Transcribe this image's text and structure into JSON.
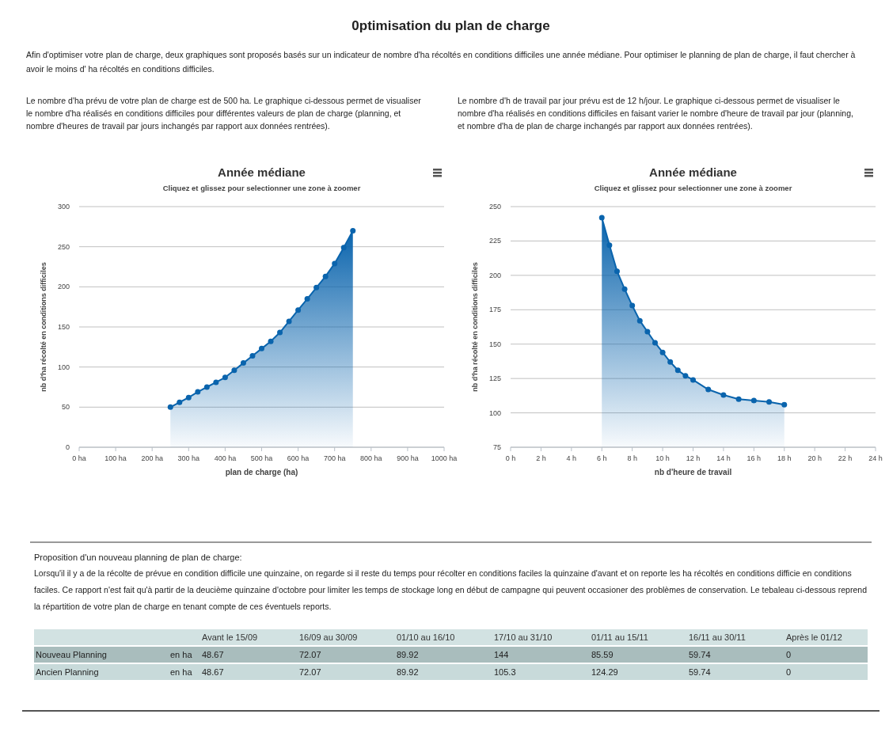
{
  "chart_data": [
    {
      "type": "other",
      "title": "0ptimisation du plan de charge",
      "annotations": [
        "Afin d'optimiser votre plan de charge, deux graphiques sont proposés basés sur un indicateur de nombre d'ha récoltés en conditions difficiles une année médiane. Pour optimiser le planning de plan de charge, il faut chercher à avoir le moins d' ha récoltés en conditions difficiles."
      ]
    },
    {
      "type": "area",
      "title": "Année médiane",
      "subtitle": "Cliquez et glissez pour selectionner une zone à zoomer",
      "xlabel": "plan de charge (ha)",
      "ylabel": "nb d'ha récolté en conditions difficiles",
      "annotations": [
        "Le nombre d'ha prévu de votre plan de charge est de 500 ha. Le graphique ci-dessous permet de visualiser le nombre d'ha réalisés en conditions difficiles pour différentes valeurs de plan de charge (planning, et nombre d'heures de travail par jours inchangés par rapport aux données rentrées)."
      ],
      "x": [
        250,
        275,
        300,
        325,
        350,
        375,
        400,
        425,
        450,
        475,
        500,
        525,
        550,
        575,
        600,
        625,
        650,
        675,
        700,
        725,
        750
      ],
      "series": [
        {
          "color": "#0a64ad",
          "values": [
            50,
            56,
            62,
            69,
            75,
            81,
            87,
            96,
            105,
            114,
            123,
            132,
            143,
            157,
            171,
            185,
            199,
            213,
            229,
            249,
            270
          ]
        }
      ],
      "xlim": [
        0,
        1000
      ],
      "xticks": [
        {
          "value": 0,
          "label": "0 ha"
        },
        {
          "value": 100,
          "label": "100 ha"
        },
        {
          "value": 200,
          "label": "200 ha"
        },
        {
          "value": 300,
          "label": "300 ha"
        },
        {
          "value": 400,
          "label": "400 ha"
        },
        {
          "value": 500,
          "label": "500 ha"
        },
        {
          "value": 600,
          "label": "600 ha"
        },
        {
          "value": 700,
          "label": "700 ha"
        },
        {
          "value": 800,
          "label": "800 ha"
        },
        {
          "value": 900,
          "label": "900 ha"
        },
        {
          "value": 1000,
          "label": "1000 ha"
        }
      ],
      "ylim": [
        0,
        300
      ],
      "yticks": [
        0,
        50,
        100,
        150,
        200,
        250,
        300
      ],
      "grid": "y",
      "marker": "circle"
    },
    {
      "type": "area",
      "title": "Année médiane",
      "subtitle": "Cliquez et glissez pour selectionner une zone à zoomer",
      "xlabel": "nb d'heure de travail",
      "ylabel": "nb d'ha récolté en conditions difficiles",
      "annotations": [
        "Le nombre d'h de travail par jour prévu est de 12 h/jour. Le graphique ci-dessous permet de visualiser le nombre d'ha réalisés en conditions difficiles en faisant varier le nombre d'heure de travail par jour (planning, et nombre d'ha de plan de charge inchangés par rapport aux données rentrées)."
      ],
      "x": [
        6,
        6.5,
        7,
        7.5,
        8,
        8.5,
        9,
        9.5,
        10,
        10.5,
        11,
        11.5,
        12,
        13,
        14,
        15,
        16,
        17,
        18
      ],
      "series": [
        {
          "color": "#0a64ad",
          "values": [
            242,
            222,
            203,
            190,
            178,
            167,
            159,
            151,
            144,
            137,
            131,
            127,
            124,
            117,
            113,
            110,
            109,
            108,
            106
          ]
        }
      ],
      "xlim": [
        0,
        24
      ],
      "xticks": [
        {
          "value": 0,
          "label": "0 h"
        },
        {
          "value": 2,
          "label": "2 h"
        },
        {
          "value": 4,
          "label": "4 h"
        },
        {
          "value": 6,
          "label": "6 h"
        },
        {
          "value": 8,
          "label": "8 h"
        },
        {
          "value": 10,
          "label": "10 h"
        },
        {
          "value": 12,
          "label": "12 h"
        },
        {
          "value": 14,
          "label": "14 h"
        },
        {
          "value": 16,
          "label": "16 h"
        },
        {
          "value": 18,
          "label": "18 h"
        },
        {
          "value": 20,
          "label": "20 h"
        },
        {
          "value": 22,
          "label": "22 h"
        },
        {
          "value": 24,
          "label": "24 h"
        }
      ],
      "ylim": [
        75,
        250
      ],
      "yticks": [
        75,
        100,
        125,
        150,
        175,
        200,
        225,
        250
      ],
      "grid": "y",
      "marker": "circle"
    },
    {
      "type": "heatmap",
      "title": "Proposition d'un nouveau planning de plan de charge:",
      "annotations": [
        "Lorsqu'il il y a de la récolte de prévue en condition difficile une quinzaine, on regarde si il reste du temps pour récolter en conditions faciles la quinzaine d'avant et on reporte les ha récoltés en conditions difficie en conditions faciles. Ce rapport n'est fait qu'à partir de la deucième quinzaine d'octobre pour limiter les temps de stockage long en début de campagne qui peuvent occasioner des problèmes de conservation. Le tebaleau ci-dessous reprend la répartition de votre plan de charge en tenant compte de ces éventuels reports."
      ],
      "categories": [
        "Avant le 15/09",
        "16/09 au 30/09",
        "01/10 au 16/10",
        "17/10 au 31/10",
        "01/11 au 15/11",
        "16/11 au 30/11",
        "Après le 01/12"
      ],
      "y_categories": [
        "Nouveau Planning",
        "Ancien Planning"
      ],
      "data_labels": true,
      "y2_categories": [
        "en ha",
        "en ha"
      ],
      "cells": [
        [
          48.67,
          72.07,
          89.92,
          144,
          85.59,
          59.74,
          0
        ],
        [
          48.67,
          72.07,
          89.92,
          105.3,
          124.29,
          59.74,
          0
        ]
      ]
    }
  ]
}
